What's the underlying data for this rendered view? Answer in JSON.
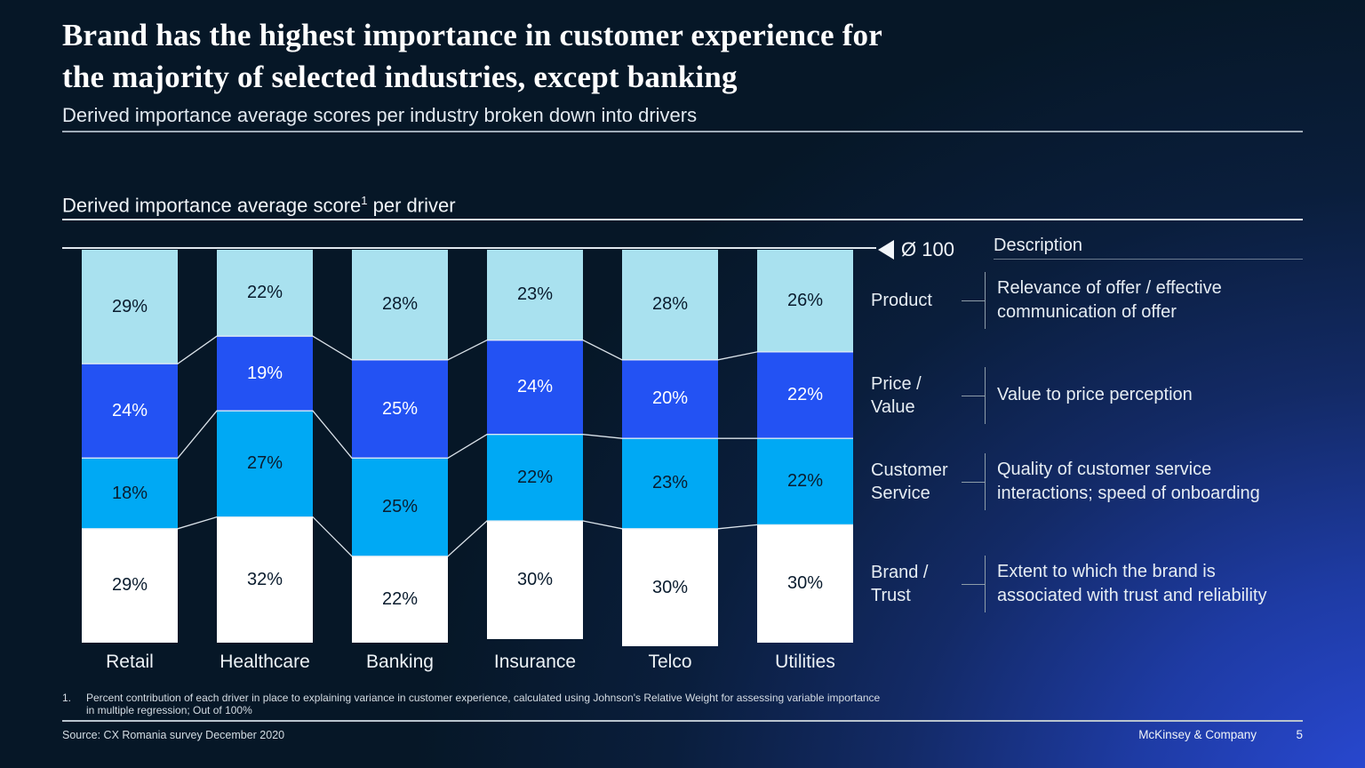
{
  "slide": {
    "title_lines": [
      "Brand has the highest importance in customer experience for",
      "the majority of selected industries, except banking"
    ],
    "subtitle": "Derived importance average scores per industry broken down into drivers",
    "chart_header": {
      "prefix": "Derived importance average score",
      "superscript": "1",
      "suffix": " per driver"
    },
    "axis_marker": {
      "label": "Ø 100"
    },
    "description_header": "Description",
    "footnote": {
      "number": "1.",
      "lines": [
        "Percent contribution of each driver in place to explaining variance in customer experience, calculated using Johnson's Relative Weight for assessing variable importance",
        "in multiple regression; Out of 100%"
      ]
    },
    "source": "Source: CX Romania survey December 2020",
    "footer": {
      "brand": "McKinsey & Company",
      "page_number": "5"
    }
  },
  "chart_data": {
    "type": "bar",
    "variant": "stacked-100-percent",
    "stack_order": "top-to-bottom",
    "unit": "%",
    "axis_note": "Ø 100",
    "title": "Derived importance average score per driver",
    "categories": [
      "Retail",
      "Healthcare",
      "Banking",
      "Insurance",
      "Telco",
      "Utilities"
    ],
    "series": [
      {
        "name": "Product",
        "label_lines": [
          "Product"
        ],
        "color": "#A9E1EF",
        "value_label_color": "#0A1C2E",
        "values": [
          29,
          22,
          28,
          23,
          28,
          26
        ],
        "description_lines": [
          "Relevance of offer / effective",
          "communication of offer"
        ]
      },
      {
        "name": "Price / Value",
        "label_lines": [
          "Price /",
          "Value"
        ],
        "color": "#2352F3",
        "value_label_color": "#FFFFFF",
        "values": [
          24,
          19,
          25,
          24,
          20,
          22
        ],
        "description_lines": [
          "Value to price perception"
        ]
      },
      {
        "name": "Customer Service",
        "label_lines": [
          "Customer",
          "Service"
        ],
        "color": "#00A9F4",
        "value_label_color": "#0A1C2E",
        "values": [
          18,
          27,
          25,
          22,
          23,
          22
        ],
        "description_lines": [
          "Quality of customer service",
          "interactions; speed of onboarding"
        ]
      },
      {
        "name": "Brand / Trust",
        "label_lines": [
          "Brand /",
          "Trust"
        ],
        "color": "#FFFFFF",
        "value_label_color": "#0A1C2E",
        "values": [
          29,
          32,
          22,
          30,
          30,
          30
        ],
        "description_lines": [
          "Extent to which the brand is",
          "associated with trust and reliability"
        ]
      }
    ],
    "colors": {
      "background_dark": "#061727",
      "background_accent": "#2B4BDC",
      "axis_line": "#DFE7ED"
    }
  }
}
